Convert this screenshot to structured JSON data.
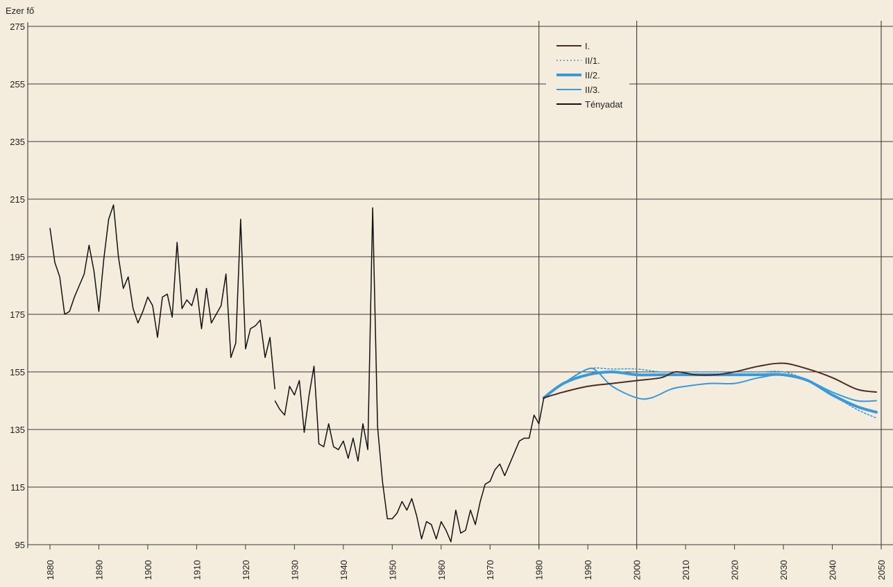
{
  "chart_data": {
    "type": "line",
    "ylabel": "Ezer fő",
    "xlim": [
      1880,
      2050
    ],
    "ylim": [
      95,
      275
    ],
    "y_ticks": [
      95,
      115,
      135,
      155,
      175,
      195,
      215,
      235,
      255,
      275
    ],
    "x_ticks": [
      1880,
      1890,
      1900,
      1910,
      1920,
      1930,
      1940,
      1950,
      1960,
      1970,
      1980,
      1990,
      2000,
      2010,
      2020,
      2030,
      2040,
      2050
    ],
    "grid": true,
    "legend_position": "top-center",
    "legend": [
      {
        "name": "I.",
        "color": "#4a2a22",
        "style": "solid"
      },
      {
        "name": "II/1.",
        "color": "#3a9ad9",
        "style": "dotted"
      },
      {
        "name": "II/2.",
        "color": "#3a9ad9",
        "style": "thick"
      },
      {
        "name": "II/3.",
        "color": "#3a9ad9",
        "style": "solid"
      },
      {
        "name": "Tényadat",
        "color": "#111111",
        "style": "solid"
      }
    ],
    "series": [
      {
        "name": "Tényadat",
        "segments": [
          [
            [
              1880,
              205
            ],
            [
              1881,
              193
            ],
            [
              1882,
              188
            ],
            [
              1883,
              175
            ],
            [
              1884,
              176
            ],
            [
              1885,
              181
            ],
            [
              1886,
              185
            ],
            [
              1887,
              189
            ],
            [
              1888,
              199
            ],
            [
              1889,
              190
            ],
            [
              1890,
              176
            ],
            [
              1891,
              194
            ],
            [
              1892,
              208
            ],
            [
              1893,
              213
            ],
            [
              1894,
              195
            ],
            [
              1895,
              184
            ],
            [
              1896,
              188
            ],
            [
              1897,
              177
            ],
            [
              1898,
              172
            ],
            [
              1899,
              176
            ],
            [
              1900,
              181
            ],
            [
              1901,
              178
            ],
            [
              1902,
              167
            ],
            [
              1903,
              181
            ],
            [
              1904,
              182
            ],
            [
              1905,
              174
            ],
            [
              1906,
              200
            ],
            [
              1907,
              177
            ],
            [
              1908,
              180
            ],
            [
              1909,
              178
            ],
            [
              1910,
              184
            ],
            [
              1911,
              170
            ],
            [
              1912,
              184
            ],
            [
              1913,
              172
            ],
            [
              1914,
              175
            ],
            [
              1915,
              178
            ],
            [
              1916,
              189
            ],
            [
              1917,
              160
            ],
            [
              1918,
              165
            ],
            [
              1919,
              208
            ],
            [
              1920,
              163
            ],
            [
              1921,
              170
            ],
            [
              1922,
              171
            ],
            [
              1923,
              173
            ],
            [
              1924,
              160
            ],
            [
              1925,
              167
            ],
            [
              1926,
              149
            ]
          ],
          [
            [
              1926,
              145
            ],
            [
              1927,
              142
            ],
            [
              1928,
              140
            ],
            [
              1929,
              150
            ],
            [
              1930,
              147
            ],
            [
              1931,
              152
            ],
            [
              1932,
              134
            ],
            [
              1933,
              147
            ],
            [
              1934,
              157
            ],
            [
              1935,
              130
            ],
            [
              1936,
              129
            ],
            [
              1937,
              137
            ],
            [
              1938,
              129
            ],
            [
              1939,
              128
            ],
            [
              1940,
              131
            ],
            [
              1941,
              125
            ],
            [
              1942,
              132
            ],
            [
              1943,
              124
            ],
            [
              1944,
              137
            ],
            [
              1945,
              128
            ],
            [
              1946,
              212
            ],
            [
              1947,
              136
            ],
            [
              1948,
              117
            ],
            [
              1949,
              104
            ],
            [
              1950,
              104
            ],
            [
              1951,
              106
            ],
            [
              1952,
              110
            ],
            [
              1953,
              107
            ],
            [
              1954,
              111
            ],
            [
              1955,
              105
            ],
            [
              1956,
              97
            ],
            [
              1957,
              103
            ],
            [
              1958,
              102
            ],
            [
              1959,
              97
            ],
            [
              1960,
              103
            ],
            [
              1961,
              100
            ],
            [
              1962,
              96
            ],
            [
              1963,
              107
            ],
            [
              1964,
              99
            ],
            [
              1965,
              100
            ],
            [
              1966,
              107
            ],
            [
              1967,
              102
            ],
            [
              1968,
              110
            ],
            [
              1969,
              116
            ],
            [
              1970,
              117
            ],
            [
              1971,
              121
            ],
            [
              1972,
              123
            ],
            [
              1973,
              119
            ],
            [
              1974,
              123
            ],
            [
              1975,
              127
            ],
            [
              1976,
              131
            ],
            [
              1977,
              132
            ],
            [
              1978,
              132
            ],
            [
              1979,
              140
            ],
            [
              1980,
              137
            ],
            [
              1981,
              146
            ]
          ]
        ]
      },
      {
        "name": "I.",
        "points": [
          [
            1981,
            146
          ],
          [
            1985,
            148
          ],
          [
            1990,
            150
          ],
          [
            1995,
            151
          ],
          [
            2000,
            152
          ],
          [
            2005,
            153
          ],
          [
            2008,
            155
          ],
          [
            2012,
            154
          ],
          [
            2016,
            154
          ],
          [
            2020,
            155
          ],
          [
            2025,
            157
          ],
          [
            2030,
            158
          ],
          [
            2035,
            156
          ],
          [
            2040,
            153
          ],
          [
            2045,
            149
          ],
          [
            2049,
            148
          ]
        ]
      },
      {
        "name": "II/1.",
        "points": [
          [
            1981,
            146
          ],
          [
            1985,
            151
          ],
          [
            1990,
            156
          ],
          [
            1995,
            156
          ],
          [
            2000,
            156
          ],
          [
            2005,
            155
          ],
          [
            2010,
            155
          ],
          [
            2015,
            155
          ],
          [
            2020,
            155
          ],
          [
            2025,
            155
          ],
          [
            2030,
            155
          ],
          [
            2035,
            152
          ],
          [
            2040,
            147
          ],
          [
            2045,
            142
          ],
          [
            2049,
            139
          ]
        ]
      },
      {
        "name": "II/2.",
        "points": [
          [
            1981,
            146
          ],
          [
            1985,
            151
          ],
          [
            1990,
            154
          ],
          [
            1995,
            155
          ],
          [
            2000,
            154
          ],
          [
            2005,
            154
          ],
          [
            2010,
            154
          ],
          [
            2015,
            154
          ],
          [
            2020,
            154
          ],
          [
            2025,
            154
          ],
          [
            2030,
            154
          ],
          [
            2035,
            152
          ],
          [
            2040,
            147
          ],
          [
            2045,
            143
          ],
          [
            2049,
            141
          ]
        ]
      },
      {
        "name": "II/3.",
        "points": [
          [
            1981,
            146
          ],
          [
            1985,
            151
          ],
          [
            1990,
            156
          ],
          [
            1992,
            155
          ],
          [
            1995,
            150
          ],
          [
            2000,
            146
          ],
          [
            2003,
            146
          ],
          [
            2007,
            149
          ],
          [
            2010,
            150
          ],
          [
            2015,
            151
          ],
          [
            2020,
            151
          ],
          [
            2025,
            153
          ],
          [
            2030,
            154
          ],
          [
            2035,
            152
          ],
          [
            2040,
            148
          ],
          [
            2045,
            145
          ],
          [
            2049,
            145
          ]
        ]
      }
    ]
  }
}
